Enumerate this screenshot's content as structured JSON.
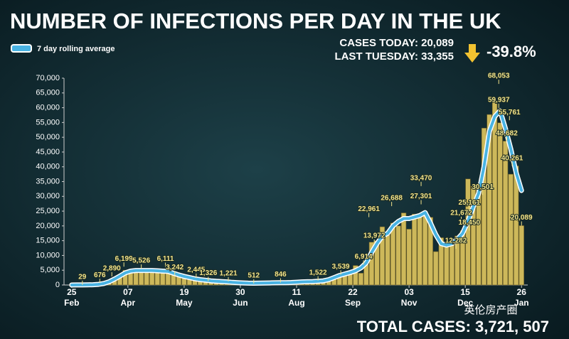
{
  "chart_data": {
    "type": "bar",
    "title": "NUMBER OF INFECTIONS PER DAY IN THE UK",
    "color": "#cdb85a",
    "x": [
      0,
      4,
      8,
      12,
      16,
      20,
      24,
      28,
      32,
      36,
      40,
      44,
      48,
      52,
      56,
      60,
      64,
      68,
      72,
      76,
      80,
      84,
      88,
      92,
      96,
      100,
      104,
      108,
      112,
      116,
      120,
      124,
      128,
      132,
      136,
      140,
      144,
      148,
      152,
      156,
      160,
      164,
      168,
      172,
      176,
      180,
      184,
      188,
      192,
      196,
      200,
      204,
      208,
      212,
      216,
      220,
      224,
      228,
      232,
      236,
      240,
      244,
      248,
      252,
      256,
      260,
      264,
      268,
      272,
      276,
      280,
      284,
      288,
      292,
      296,
      300,
      304,
      308,
      312,
      316,
      320,
      324,
      328,
      332,
      336
    ],
    "values": [
      13,
      20,
      50,
      70,
      130,
      300,
      700,
      1500,
      2500,
      3500,
      5000,
      5200,
      4500,
      5500,
      4500,
      5000,
      5000,
      4500,
      5500,
      3500,
      3500,
      2500,
      2500,
      2000,
      1600,
      1800,
      1200,
      1300,
      1200,
      1200,
      650,
      900,
      600,
      500,
      600,
      550,
      750,
      700,
      750,
      850,
      700,
      900,
      1000,
      1200,
      1100,
      1200,
      1300,
      1400,
      1900,
      2800,
      3500,
      3900,
      4400,
      6600,
      4000,
      6900,
      14500,
      15000,
      19700,
      16900,
      21000,
      20000,
      24400,
      18900,
      24000,
      22900,
      24900,
      22900,
      11300,
      16000,
      13400,
      15500,
      16600,
      18400,
      35900,
      33400,
      32700,
      53100,
      57700,
      62300,
      54900,
      48700,
      37500,
      40300,
      20089
    ],
    "line": {
      "name": "7 day rolling average",
      "color": "#49b3e3",
      "values": [
        10,
        15,
        30,
        50,
        100,
        220,
        500,
        1100,
        2000,
        3000,
        4100,
        4700,
        4900,
        4900,
        4900,
        4900,
        4800,
        4700,
        4600,
        4000,
        3400,
        2900,
        2500,
        2100,
        1800,
        1600,
        1400,
        1250,
        1150,
        1050,
        900,
        800,
        700,
        620,
        600,
        620,
        650,
        700,
        750,
        780,
        800,
        850,
        950,
        1050,
        1100,
        1150,
        1250,
        1400,
        1800,
        2500,
        3200,
        3700,
        4200,
        4800,
        5800,
        7500,
        11000,
        14000,
        16500,
        17500,
        20000,
        21500,
        22500,
        22500,
        23000,
        23500,
        24500,
        21000,
        17000,
        14000,
        13500,
        14000,
        15500,
        17500,
        21500,
        26500,
        31000,
        40000,
        52000,
        57000,
        59000,
        53000,
        46000,
        38000,
        32000
      ]
    },
    "annotations": [
      {
        "x": 8,
        "value": 29,
        "label": "29"
      },
      {
        "x": 21,
        "value": 676,
        "label": "676"
      },
      {
        "x": 30,
        "value": 2890,
        "label": "2,890"
      },
      {
        "x": 39,
        "value": 6199,
        "label": "6,199"
      },
      {
        "x": 52,
        "value": 5526,
        "label": "5,526"
      },
      {
        "x": 70,
        "value": 6111,
        "label": "6,111"
      },
      {
        "x": 77,
        "value": 3242,
        "label": "3,242"
      },
      {
        "x": 93,
        "value": 2445,
        "label": "2,445"
      },
      {
        "x": 102,
        "value": 1326,
        "label": "1,326"
      },
      {
        "x": 117,
        "value": 1221,
        "label": "1,221"
      },
      {
        "x": 136,
        "value": 512,
        "label": "512"
      },
      {
        "x": 156,
        "value": 846,
        "label": "846"
      },
      {
        "x": 184,
        "value": 1522,
        "label": "1,522"
      },
      {
        "x": 201,
        "value": 3539,
        "label": "3,539"
      },
      {
        "x": 218,
        "value": 6914,
        "label": "6,914"
      },
      {
        "x": 222,
        "value": 22961,
        "label": "22,961"
      },
      {
        "x": 226,
        "value": 13972,
        "label": "13,972"
      },
      {
        "x": 239,
        "value": 26688,
        "label": "26,688"
      },
      {
        "x": 261,
        "value": 33470,
        "label": "33,470"
      },
      {
        "x": 261,
        "value": 27301,
        "label": "27,301"
      },
      {
        "x": 287,
        "value": 12282,
        "label": "12,282"
      },
      {
        "x": 291,
        "value": 21672,
        "label": "21,672"
      },
      {
        "x": 297,
        "value": 25161,
        "label": "25,161"
      },
      {
        "x": 297,
        "value": 18450,
        "label": "18,450"
      },
      {
        "x": 307,
        "value": 30501,
        "label": "30,501"
      },
      {
        "x": 319,
        "value": 59937,
        "label": "59,937"
      },
      {
        "x": 319,
        "value": 68053,
        "label": "68,053"
      },
      {
        "x": 327,
        "value": 55761,
        "label": "55,761"
      },
      {
        "x": 325,
        "value": 48682,
        "label": "48,682"
      },
      {
        "x": 329,
        "value": 40261,
        "label": "40,261"
      },
      {
        "x": 336,
        "value": 20089,
        "label": "20,089"
      }
    ],
    "xlim": [
      -2,
      338
    ],
    "xticks": [
      {
        "value": 0,
        "label": "25"
      },
      {
        "value": 42,
        "label": "07"
      },
      {
        "value": 84,
        "label": "19"
      },
      {
        "value": 126,
        "label": "30"
      },
      {
        "value": 168,
        "label": "11"
      },
      {
        "value": 210,
        "label": "22"
      },
      {
        "value": 252,
        "label": "03"
      },
      {
        "value": 294,
        "label": "15"
      },
      {
        "value": 336,
        "label": "26"
      }
    ],
    "xtick_months": [
      "Feb",
      "Apr",
      "May",
      "Jun",
      "Aug",
      "Sep",
      "Nov",
      "Dec",
      "Jan"
    ],
    "ylim": [
      0,
      70000
    ],
    "yticks": [
      0,
      {
        "value": 5000,
        "label": "5,000"
      },
      {
        "value": 10000,
        "label": "10,000"
      },
      {
        "value": 15000,
        "label": "15,000"
      },
      {
        "value": 20000,
        "label": "20,000"
      },
      {
        "value": 25000,
        "label": "25,000"
      },
      {
        "value": 30000,
        "label": "30,000"
      },
      {
        "value": 35000,
        "label": "35,000"
      },
      {
        "value": 40000,
        "label": "40,000"
      },
      {
        "value": 45000,
        "label": "45,000"
      },
      {
        "value": 50000,
        "label": "50,000"
      },
      {
        "value": 55000,
        "label": "55,000"
      },
      {
        "value": 60000,
        "label": "60,000"
      },
      {
        "value": 65000,
        "label": "65,000"
      },
      {
        "value": 70000,
        "label": "70,000"
      }
    ],
    "grid": false
  },
  "stats": {
    "cases_today": "CASES TODAY: 20,089",
    "last_tuesday": "LAST TUESDAY: 33,355",
    "change": "-39.8%",
    "total": "TOTAL CASES: 3,721, 507"
  },
  "watermark": "英伦房产圈"
}
